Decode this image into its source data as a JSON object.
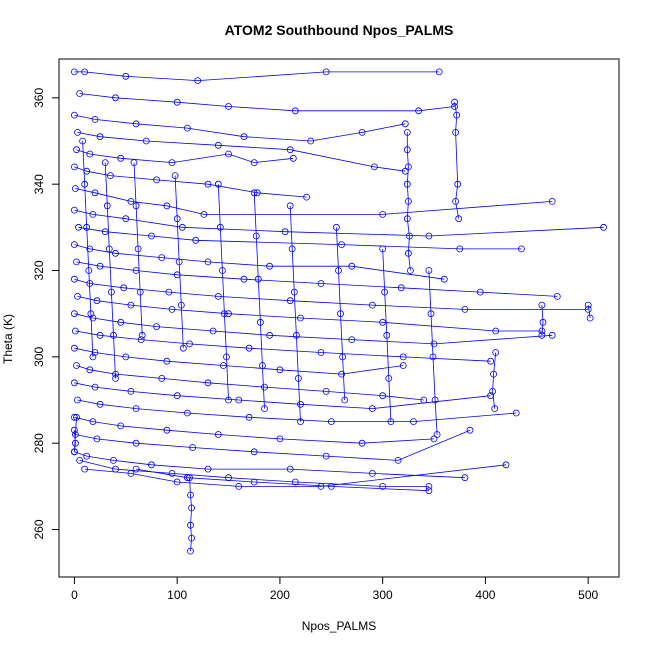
{
  "chart_data": {
    "type": "scatter",
    "title": "ATOM2 Southbound Npos_PALMS",
    "xlabel": "Npos_PALMS",
    "ylabel": "Theta (K)",
    "xlim": [
      -15,
      530
    ],
    "ylim": [
      249,
      369
    ],
    "xticks": [
      0,
      100,
      200,
      300,
      400,
      500
    ],
    "yticks": [
      260,
      280,
      300,
      320,
      340,
      360
    ],
    "grid": false,
    "color": "#0000ff",
    "point_style": "open circle",
    "connected": true,
    "series": [
      {
        "values_description": "",
        "points": [
          [
            0,
            366
          ],
          [
            10,
            366
          ],
          [
            50,
            365
          ],
          [
            120,
            364
          ],
          [
            245,
            366
          ],
          [
            355,
            366
          ]
        ]
      },
      {
        "points": [
          [
            5,
            361
          ],
          [
            40,
            360
          ],
          [
            100,
            359
          ],
          [
            150,
            358
          ],
          [
            215,
            357
          ],
          [
            335,
            357
          ],
          [
            370,
            358
          ]
        ]
      },
      {
        "points": [
          [
            0,
            356
          ],
          [
            20,
            355
          ],
          [
            60,
            354
          ],
          [
            110,
            353
          ],
          [
            165,
            351
          ],
          [
            230,
            350
          ],
          [
            280,
            352
          ],
          [
            322,
            354
          ]
        ]
      },
      {
        "points": [
          [
            3,
            352
          ],
          [
            25,
            351
          ],
          [
            70,
            350
          ],
          [
            140,
            349
          ],
          [
            210,
            348
          ],
          [
            292,
            344
          ],
          [
            322,
            343
          ]
        ]
      },
      {
        "points": [
          [
            2,
            348
          ],
          [
            15,
            347
          ],
          [
            45,
            346
          ],
          [
            95,
            345
          ],
          [
            150,
            347
          ],
          [
            175,
            345
          ],
          [
            213,
            346
          ]
        ]
      },
      {
        "points": [
          [
            0,
            344
          ],
          [
            12,
            343
          ],
          [
            35,
            342
          ],
          [
            80,
            341
          ],
          [
            130,
            340
          ],
          [
            178,
            338
          ],
          [
            226,
            337
          ]
        ]
      },
      {
        "points": [
          [
            1,
            339
          ],
          [
            20,
            338
          ],
          [
            55,
            336
          ],
          [
            90,
            335
          ],
          [
            126,
            333
          ],
          [
            300,
            333
          ],
          [
            465,
            336
          ]
        ]
      },
      {
        "points": [
          [
            0,
            334
          ],
          [
            18,
            333
          ],
          [
            50,
            332
          ],
          [
            105,
            330
          ],
          [
            205,
            329
          ],
          [
            345,
            328
          ],
          [
            515,
            330
          ]
        ]
      },
      {
        "points": [
          [
            4,
            330
          ],
          [
            30,
            329
          ],
          [
            75,
            328
          ],
          [
            118,
            327
          ],
          [
            260,
            326
          ],
          [
            375,
            325
          ],
          [
            435,
            325
          ]
        ]
      },
      {
        "points": [
          [
            0,
            326
          ],
          [
            15,
            325
          ],
          [
            40,
            324
          ],
          [
            85,
            323
          ],
          [
            130,
            322
          ],
          [
            190,
            321
          ],
          [
            270,
            321
          ],
          [
            360,
            318
          ]
        ]
      },
      {
        "points": [
          [
            2,
            322
          ],
          [
            25,
            321
          ],
          [
            60,
            320
          ],
          [
            100,
            319
          ],
          [
            165,
            318
          ],
          [
            240,
            317
          ],
          [
            318,
            316
          ],
          [
            395,
            315
          ],
          [
            470,
            314
          ]
        ]
      },
      {
        "points": [
          [
            0,
            318
          ],
          [
            15,
            317
          ],
          [
            48,
            316
          ],
          [
            92,
            315
          ],
          [
            140,
            314
          ],
          [
            210,
            313
          ],
          [
            290,
            312
          ],
          [
            380,
            311
          ],
          [
            500,
            311
          ]
        ]
      },
      {
        "points": [
          [
            3,
            314
          ],
          [
            22,
            313
          ],
          [
            55,
            312
          ],
          [
            95,
            311
          ],
          [
            150,
            310
          ],
          [
            220,
            309
          ],
          [
            300,
            308
          ],
          [
            410,
            306
          ],
          [
            455,
            306
          ]
        ]
      },
      {
        "points": [
          [
            0,
            310
          ],
          [
            18,
            309
          ],
          [
            45,
            308
          ],
          [
            80,
            307
          ],
          [
            135,
            306
          ],
          [
            190,
            305
          ],
          [
            270,
            304
          ],
          [
            350,
            303
          ],
          [
            465,
            305
          ]
        ]
      },
      {
        "points": [
          [
            1,
            306
          ],
          [
            25,
            305
          ],
          [
            65,
            304
          ],
          [
            112,
            303
          ],
          [
            170,
            302
          ],
          [
            240,
            301
          ],
          [
            320,
            300
          ],
          [
            405,
            299
          ]
        ]
      },
      {
        "points": [
          [
            0,
            302
          ],
          [
            20,
            301
          ],
          [
            50,
            300
          ],
          [
            90,
            299
          ],
          [
            145,
            298
          ],
          [
            200,
            297
          ],
          [
            260,
            296
          ],
          [
            320,
            298
          ]
        ]
      },
      {
        "points": [
          [
            2,
            298
          ],
          [
            15,
            297
          ],
          [
            40,
            296
          ],
          [
            85,
            295
          ],
          [
            130,
            294
          ],
          [
            185,
            293
          ],
          [
            245,
            292
          ],
          [
            300,
            291
          ],
          [
            340,
            290
          ]
        ]
      },
      {
        "points": [
          [
            0,
            294
          ],
          [
            20,
            293
          ],
          [
            55,
            292
          ],
          [
            100,
            291
          ],
          [
            160,
            290
          ],
          [
            220,
            289
          ],
          [
            290,
            288
          ],
          [
            405,
            291
          ]
        ]
      },
      {
        "points": [
          [
            3,
            290
          ],
          [
            25,
            289
          ],
          [
            60,
            288
          ],
          [
            110,
            287
          ],
          [
            170,
            286
          ],
          [
            250,
            285
          ],
          [
            330,
            285
          ],
          [
            430,
            287
          ]
        ]
      },
      {
        "points": [
          [
            0,
            286
          ],
          [
            18,
            285
          ],
          [
            45,
            284
          ],
          [
            90,
            283
          ],
          [
            140,
            282
          ],
          [
            200,
            281
          ],
          [
            280,
            280
          ],
          [
            350,
            281
          ]
        ]
      },
      {
        "points": [
          [
            1,
            282
          ],
          [
            22,
            281
          ],
          [
            60,
            280
          ],
          [
            115,
            279
          ],
          [
            175,
            278
          ],
          [
            245,
            277
          ],
          [
            315,
            276
          ],
          [
            385,
            283
          ]
        ]
      },
      {
        "points": [
          [
            0,
            278
          ],
          [
            12,
            277
          ],
          [
            38,
            276
          ],
          [
            75,
            275
          ],
          [
            130,
            274
          ],
          [
            210,
            274
          ],
          [
            290,
            273
          ],
          [
            380,
            272
          ]
        ]
      },
      {
        "points": [
          [
            5,
            276
          ],
          [
            40,
            274
          ],
          [
            95,
            273
          ],
          [
            150,
            272
          ],
          [
            215,
            271
          ],
          [
            300,
            270
          ],
          [
            345,
            270
          ]
        ]
      },
      {
        "points": [
          [
            10,
            274
          ],
          [
            55,
            273
          ],
          [
            100,
            271
          ],
          [
            160,
            270
          ],
          [
            240,
            270
          ],
          [
            420,
            275
          ]
        ]
      },
      {
        "points": [
          [
            60,
            274
          ],
          [
            110,
            272
          ],
          [
            175,
            271
          ],
          [
            250,
            270
          ],
          [
            345,
            269
          ]
        ]
      },
      {
        "points": [
          [
            112,
            272
          ],
          [
            113,
            268
          ],
          [
            114,
            265
          ],
          [
            113,
            261
          ],
          [
            114,
            258
          ],
          [
            113,
            255
          ]
        ]
      },
      {
        "points": [
          [
            324,
            352
          ],
          [
            324,
            348
          ],
          [
            325,
            344
          ],
          [
            324,
            340
          ],
          [
            325,
            336
          ],
          [
            324,
            332
          ],
          [
            326,
            328
          ],
          [
            325,
            324
          ],
          [
            327,
            320
          ]
        ]
      },
      {
        "points": [
          [
            370,
            359
          ],
          [
            372,
            356
          ],
          [
            371,
            352
          ],
          [
            373,
            340
          ],
          [
            371,
            336
          ],
          [
            374,
            332
          ]
        ]
      },
      {
        "points": [
          [
            410,
            301
          ],
          [
            408,
            296
          ],
          [
            407,
            292
          ],
          [
            409,
            288
          ]
        ]
      },
      {
        "points": [
          [
            455,
            312
          ],
          [
            456,
            308
          ],
          [
            455,
            305
          ]
        ]
      },
      {
        "points": [
          [
            500,
            312
          ],
          [
            502,
            309
          ]
        ]
      },
      {
        "points": [
          [
            0,
            283
          ],
          [
            1,
            280
          ],
          [
            0,
            278
          ],
          [
            2,
            286
          ]
        ]
      },
      {
        "points": [
          [
            8,
            350
          ],
          [
            10,
            340
          ],
          [
            12,
            330
          ],
          [
            14,
            320
          ],
          [
            16,
            310
          ],
          [
            18,
            300
          ]
        ]
      },
      {
        "points": [
          [
            30,
            345
          ],
          [
            32,
            335
          ],
          [
            34,
            325
          ],
          [
            36,
            315
          ],
          [
            38,
            305
          ],
          [
            40,
            295
          ]
        ]
      },
      {
        "points": [
          [
            58,
            345
          ],
          [
            60,
            335
          ],
          [
            62,
            325
          ],
          [
            64,
            315
          ],
          [
            66,
            305
          ]
        ]
      },
      {
        "points": [
          [
            98,
            342
          ],
          [
            100,
            332
          ],
          [
            102,
            322
          ],
          [
            104,
            312
          ],
          [
            106,
            302
          ]
        ]
      },
      {
        "points": [
          [
            140,
            340
          ],
          [
            142,
            330
          ],
          [
            144,
            320
          ],
          [
            146,
            310
          ],
          [
            148,
            300
          ],
          [
            150,
            290
          ]
        ]
      },
      {
        "points": [
          [
            175,
            338
          ],
          [
            177,
            328
          ],
          [
            179,
            318
          ],
          [
            181,
            308
          ],
          [
            183,
            298
          ],
          [
            185,
            288
          ]
        ]
      },
      {
        "points": [
          [
            210,
            335
          ],
          [
            212,
            325
          ],
          [
            214,
            315
          ],
          [
            216,
            305
          ],
          [
            218,
            295
          ],
          [
            220,
            285
          ]
        ]
      },
      {
        "points": [
          [
            255,
            330
          ],
          [
            257,
            320
          ],
          [
            259,
            310
          ],
          [
            261,
            300
          ],
          [
            263,
            290
          ]
        ]
      },
      {
        "points": [
          [
            300,
            325
          ],
          [
            302,
            315
          ],
          [
            304,
            305
          ],
          [
            306,
            295
          ],
          [
            308,
            285
          ]
        ]
      },
      {
        "points": [
          [
            345,
            320
          ],
          [
            347,
            310
          ],
          [
            349,
            300
          ],
          [
            351,
            290
          ],
          [
            353,
            282
          ]
        ]
      }
    ]
  }
}
